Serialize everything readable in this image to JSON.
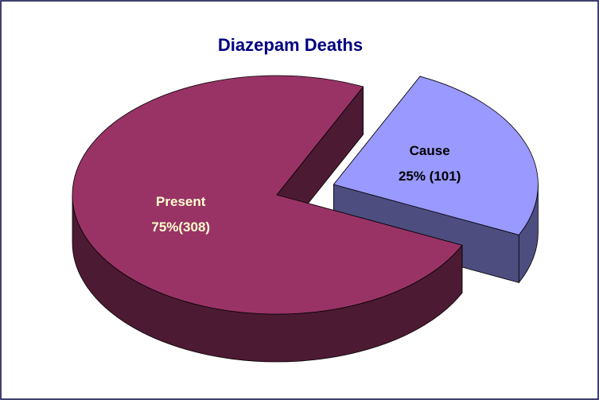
{
  "chart_data": {
    "type": "pie3d",
    "title": "Diazepam Deaths",
    "categories": [
      "Cause",
      "Present"
    ],
    "values": [
      25,
      75
    ],
    "value_labels": [
      "25% (101)",
      "75%(308)"
    ],
    "colors": [
      "#9999ff",
      "#993366"
    ],
    "label_colors": [
      "#000000",
      "#ffffcc"
    ],
    "exploded": [
      true,
      false
    ]
  }
}
